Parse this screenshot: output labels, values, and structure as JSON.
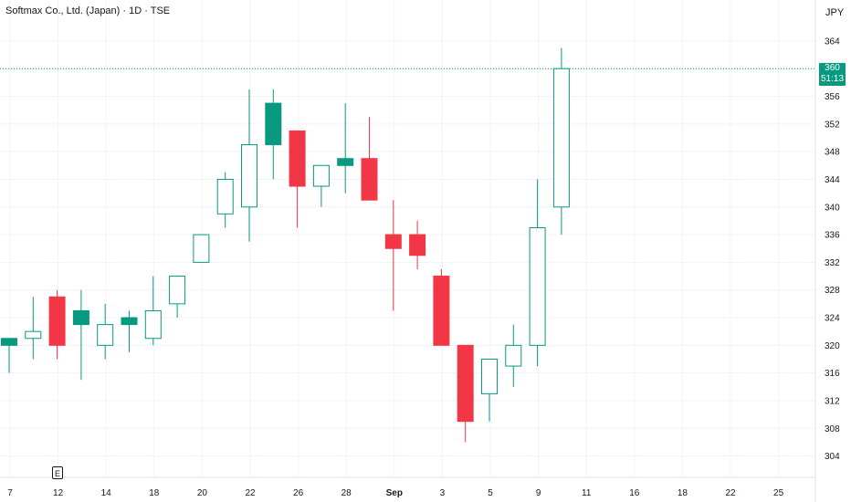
{
  "header": {
    "title": "Softmax Co., Ltd. (Japan) · 1D · TSE",
    "currency": "JPY"
  },
  "price_badge": {
    "price": "360",
    "countdown": "51:13"
  },
  "earnings_marker": {
    "label": "E"
  },
  "colors": {
    "up": "#089981",
    "down": "#f23645",
    "grid": "#f0f3fa",
    "axis_text": "#131722"
  },
  "chart_data": {
    "type": "candlestick",
    "y_ticks": [
      304,
      308,
      312,
      316,
      320,
      324,
      328,
      332,
      336,
      340,
      344,
      348,
      352,
      356,
      360,
      364
    ],
    "x_ticks": [
      {
        "label": "7",
        "slot": 0
      },
      {
        "label": "12",
        "slot": 2
      },
      {
        "label": "14",
        "slot": 4
      },
      {
        "label": "18",
        "slot": 6
      },
      {
        "label": "20",
        "slot": 8
      },
      {
        "label": "22",
        "slot": 10
      },
      {
        "label": "26",
        "slot": 12
      },
      {
        "label": "28",
        "slot": 14
      },
      {
        "label": "Sep",
        "slot": 16,
        "bold": true
      },
      {
        "label": "3",
        "slot": 18
      },
      {
        "label": "5",
        "slot": 20
      },
      {
        "label": "9",
        "slot": 22
      },
      {
        "label": "11",
        "slot": 24
      },
      {
        "label": "16",
        "slot": 26
      },
      {
        "label": "18",
        "slot": 28
      },
      {
        "label": "22",
        "slot": 30
      },
      {
        "label": "25",
        "slot": 32
      }
    ],
    "last_price": 360,
    "candles": [
      {
        "o": 320,
        "h": 321,
        "l": 316,
        "c": 321,
        "up": false,
        "filled_up": true
      },
      {
        "o": 321,
        "h": 327,
        "l": 318,
        "c": 322
      },
      {
        "o": 327,
        "h": 328,
        "l": 318,
        "c": 320
      },
      {
        "o": 323,
        "h": 328,
        "l": 315,
        "c": 325,
        "filled_up": true
      },
      {
        "o": 320,
        "h": 326,
        "l": 318,
        "c": 323
      },
      {
        "o": 323,
        "h": 325,
        "l": 319,
        "c": 324,
        "filled_up": true
      },
      {
        "o": 321,
        "h": 330,
        "l": 320,
        "c": 325
      },
      {
        "o": 326,
        "h": 330,
        "l": 324,
        "c": 330
      },
      {
        "o": 332,
        "h": 336,
        "l": 332,
        "c": 336
      },
      {
        "o": 339,
        "h": 345,
        "l": 337,
        "c": 344
      },
      {
        "o": 340,
        "h": 357,
        "l": 335,
        "c": 349
      },
      {
        "o": 349,
        "h": 357,
        "l": 344,
        "c": 355,
        "filled_up": true
      },
      {
        "o": 351,
        "h": 351,
        "l": 337,
        "c": 343
      },
      {
        "o": 343,
        "h": 346,
        "l": 340,
        "c": 346
      },
      {
        "o": 346,
        "h": 355,
        "l": 342,
        "c": 347,
        "filled_up": true
      },
      {
        "o": 347,
        "h": 353,
        "l": 341,
        "c": 341
      },
      {
        "o": 336,
        "h": 341,
        "l": 325,
        "c": 334
      },
      {
        "o": 336,
        "h": 338,
        "l": 331,
        "c": 333
      },
      {
        "o": 330,
        "h": 331,
        "l": 320,
        "c": 320
      },
      {
        "o": 320,
        "h": 320,
        "l": 306,
        "c": 309
      },
      {
        "o": 313,
        "h": 318,
        "l": 309,
        "c": 318
      },
      {
        "o": 317,
        "h": 323,
        "l": 314,
        "c": 320
      },
      {
        "o": 320,
        "h": 344,
        "l": 317,
        "c": 337
      },
      {
        "o": 340,
        "h": 363,
        "l": 336,
        "c": 360
      }
    ]
  }
}
